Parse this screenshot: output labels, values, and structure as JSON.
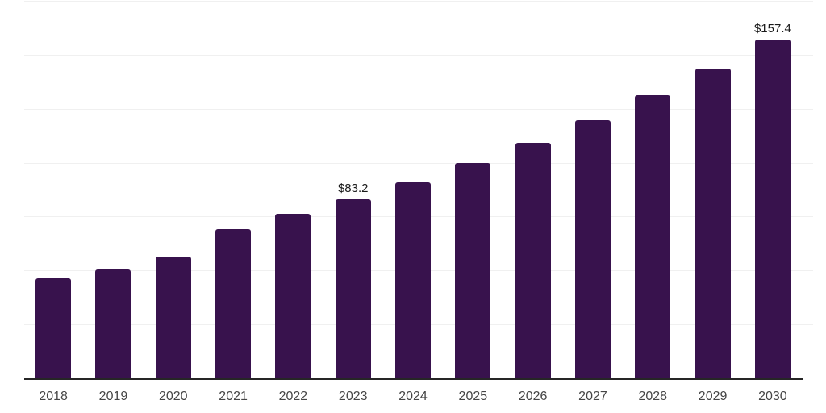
{
  "chart_data": {
    "type": "bar",
    "categories": [
      "2018",
      "2019",
      "2020",
      "2021",
      "2022",
      "2023",
      "2024",
      "2025",
      "2026",
      "2027",
      "2028",
      "2029",
      "2030"
    ],
    "values": [
      46.6,
      50.7,
      56.7,
      69.4,
      76.5,
      83.2,
      91.4,
      100.3,
      109.7,
      120.1,
      131.7,
      144.0,
      157.4
    ],
    "annotations": [
      {
        "category": "2023",
        "text": "$83.2"
      },
      {
        "category": "2030",
        "text": "$157.4"
      }
    ],
    "ylim": [
      0,
      175
    ],
    "gridline_step": 25,
    "grid": true,
    "legend": false,
    "colors": {
      "bar": "#38124D",
      "axis_line": "#262626",
      "gridline": "#f0f0f0",
      "tick_label": "#454545",
      "value_label": "#1a1a1a"
    }
  }
}
